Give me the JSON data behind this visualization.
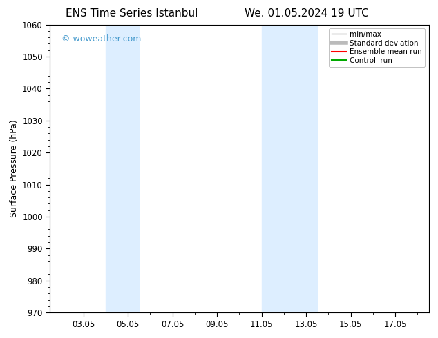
{
  "title_left": "ENS Time Series Istanbul",
  "title_right": "We. 01.05.2024 19 UTC",
  "ylabel": "Surface Pressure (hPa)",
  "ylim": [
    970,
    1060
  ],
  "yticks": [
    970,
    980,
    990,
    1000,
    1010,
    1020,
    1030,
    1040,
    1050,
    1060
  ],
  "xtick_labels": [
    "03.05",
    "05.05",
    "07.05",
    "09.05",
    "11.05",
    "13.05",
    "15.05",
    "17.05"
  ],
  "xtick_positions": [
    3,
    5,
    7,
    9,
    11,
    13,
    15,
    17
  ],
  "xlim": [
    1.5,
    18.5
  ],
  "shaded_regions": [
    {
      "x_start": 4.0,
      "x_end": 5.5,
      "color": "#ddeeff"
    },
    {
      "x_start": 11.0,
      "x_end": 13.5,
      "color": "#ddeeff"
    }
  ],
  "watermark_text": "© woweather.com",
  "watermark_color": "#4499cc",
  "legend_entries": [
    {
      "label": "min/max",
      "color": "#999999",
      "lw": 1.0
    },
    {
      "label": "Standard deviation",
      "color": "#bbbbbb",
      "lw": 4.0
    },
    {
      "label": "Ensemble mean run",
      "color": "#ff0000",
      "lw": 1.5
    },
    {
      "label": "Controll run",
      "color": "#00aa00",
      "lw": 1.5
    }
  ],
  "bg_color": "#ffffff",
  "plot_bg_color": "#ffffff",
  "border_color": "#000000",
  "title_fontsize": 11,
  "axis_label_fontsize": 9,
  "tick_label_fontsize": 8.5,
  "watermark_fontsize": 9,
  "legend_fontsize": 7.5
}
